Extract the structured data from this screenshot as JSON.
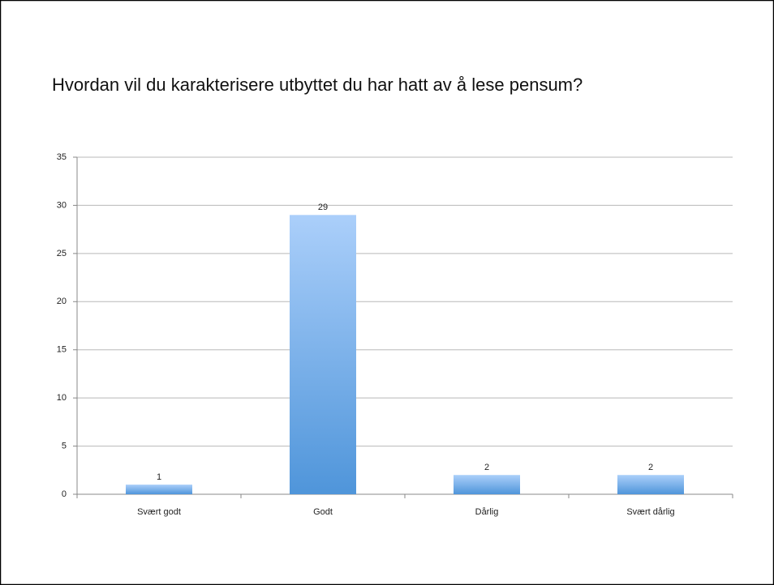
{
  "chart_data": {
    "type": "bar",
    "title": "Hvordan vil du karakterisere utbyttet du har hatt av å lese pensum?",
    "categories": [
      "Svært godt",
      "Godt",
      "Dårlig",
      "Svært dårlig"
    ],
    "values": [
      1,
      29,
      2,
      2
    ],
    "color": "#6fa8e8",
    "ylim": [
      0,
      35
    ],
    "yticks": [
      0,
      5,
      10,
      15,
      20,
      25,
      30,
      35
    ],
    "grid": true
  }
}
